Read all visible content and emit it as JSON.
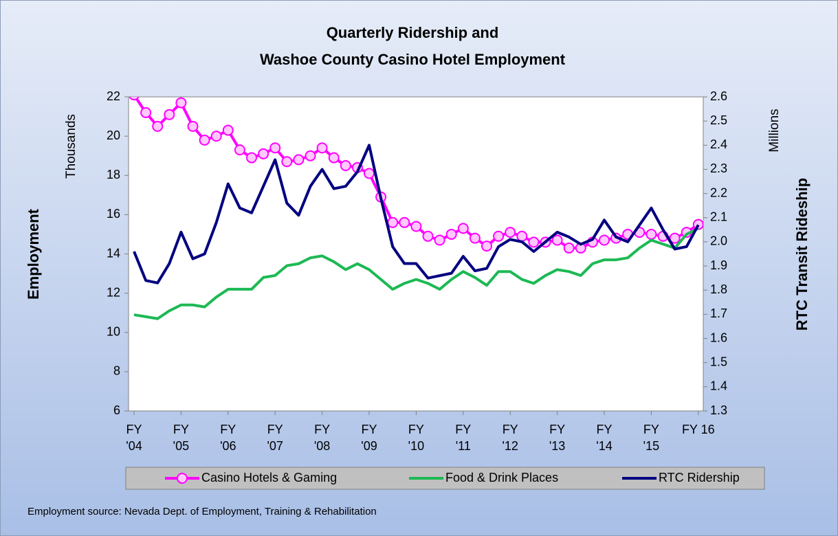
{
  "chart_data": {
    "type": "line",
    "title": [
      "Quarterly Ridership and",
      "Washoe County Casino Hotel Employment"
    ],
    "y_label": "Employment",
    "y_unit": "Thousands",
    "y2_label": "RTC Transit Rideship",
    "y2_unit": "Millions",
    "footnote": "Employment source: Nevada Dept. of Employment, Training & Rehabilitation",
    "categories": [
      "FY\n'04",
      null,
      null,
      null,
      "FY\n'05",
      null,
      null,
      null,
      "FY\n'06",
      null,
      null,
      null,
      "FY\n'07",
      null,
      null,
      null,
      "FY\n'08",
      null,
      null,
      null,
      "FY\n'09",
      null,
      null,
      null,
      "FY\n'10",
      null,
      null,
      null,
      "FY\n'11",
      null,
      null,
      null,
      "FY\n'12",
      null,
      null,
      null,
      "FY\n'13",
      null,
      null,
      null,
      "FY\n'14",
      null,
      null,
      null,
      "FY\n'15",
      null,
      null,
      null,
      "FY 16"
    ],
    "series": [
      {
        "name": "Casino Hotels & Gaming",
        "color": "#ff00ff",
        "marker": "circle",
        "axis": "y",
        "values": [
          22.1,
          21.2,
          20.5,
          21.1,
          21.7,
          20.5,
          19.8,
          20.0,
          20.3,
          19.3,
          18.9,
          19.1,
          19.4,
          18.7,
          18.8,
          19.0,
          19.4,
          18.9,
          18.5,
          18.4,
          18.1,
          16.9,
          15.6,
          15.6,
          15.4,
          14.9,
          14.7,
          15.0,
          15.3,
          14.8,
          14.4,
          14.9,
          15.1,
          14.9,
          14.6,
          14.6,
          14.7,
          14.3,
          14.3,
          14.6,
          14.7,
          14.8,
          15.0,
          15.1,
          15.0,
          14.9,
          14.8,
          15.1,
          15.5
        ]
      },
      {
        "name": "Food & Drink Places",
        "color": "#1db954",
        "axis": "y",
        "values": [
          10.9,
          10.8,
          10.7,
          11.1,
          11.4,
          11.4,
          11.3,
          11.8,
          12.2,
          12.2,
          12.2,
          12.8,
          12.9,
          13.4,
          13.5,
          13.8,
          13.9,
          13.6,
          13.2,
          13.5,
          13.2,
          12.7,
          12.2,
          12.5,
          12.7,
          12.5,
          12.2,
          12.7,
          13.1,
          12.8,
          12.4,
          13.1,
          13.1,
          12.7,
          12.5,
          12.9,
          13.2,
          13.1,
          12.9,
          13.5,
          13.7,
          13.7,
          13.8,
          14.3,
          14.7,
          14.5,
          14.3,
          15.0,
          15.3
        ]
      },
      {
        "name": "RTC Ridership",
        "color": "#000080",
        "axis": "y2",
        "values": [
          1.96,
          1.84,
          1.83,
          1.91,
          2.04,
          1.93,
          1.95,
          2.08,
          2.24,
          2.14,
          2.12,
          2.23,
          2.34,
          2.16,
          2.11,
          2.23,
          2.3,
          2.22,
          2.23,
          2.29,
          2.4,
          2.18,
          1.98,
          1.91,
          1.91,
          1.85,
          1.86,
          1.87,
          1.94,
          1.88,
          1.89,
          1.98,
          2.01,
          2.0,
          1.96,
          2.0,
          2.04,
          2.02,
          1.99,
          2.01,
          2.09,
          2.02,
          2.0,
          2.07,
          2.14,
          2.05,
          1.97,
          1.98,
          2.07
        ]
      }
    ],
    "ylim": [
      6,
      22
    ],
    "yticks": [
      6,
      8,
      10,
      12,
      14,
      16,
      18,
      20,
      22
    ],
    "y2lim": [
      1.3,
      2.6
    ],
    "y2ticks": [
      1.3,
      1.4,
      1.5,
      1.6,
      1.7,
      1.8,
      1.9,
      {
        "value": 2,
        "label": "2.0"
      },
      2.1,
      2.2,
      2.3,
      2.4,
      2.5,
      2.6
    ],
    "grid": false,
    "legend": "bottom"
  }
}
